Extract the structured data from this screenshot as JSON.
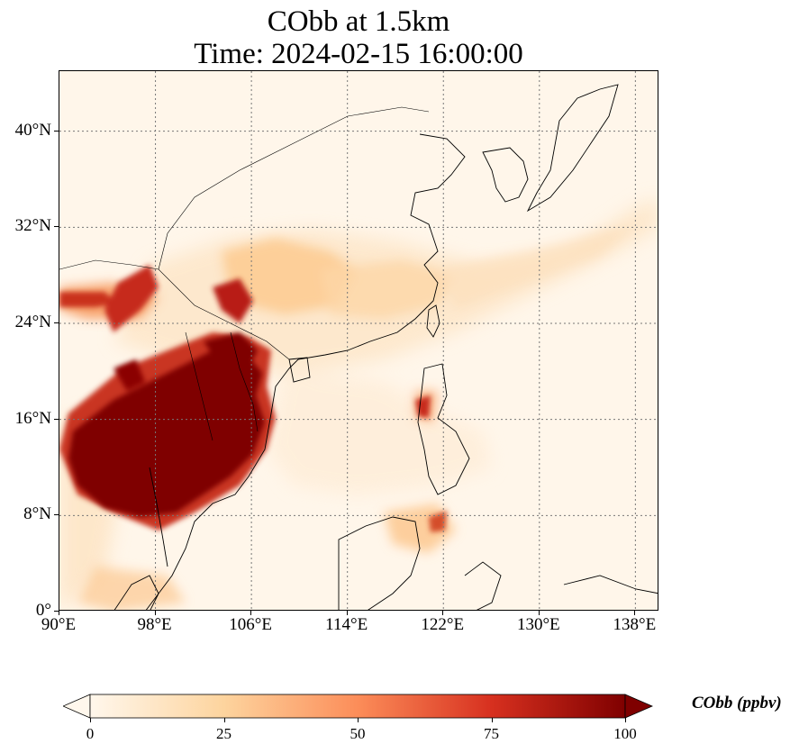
{
  "title": {
    "line1": "CObb at 1.5km",
    "line2": "Time: 2024-02-15 16:00:00"
  },
  "map": {
    "extent": {
      "lon_min": 90,
      "lon_max": 140,
      "lat_min": 0,
      "lat_max": 45
    },
    "lat_ticks": [
      {
        "value": 40,
        "label": "40°N"
      },
      {
        "value": 32,
        "label": "32°N"
      },
      {
        "value": 24,
        "label": "24°N"
      },
      {
        "value": 16,
        "label": "16°N"
      },
      {
        "value": 8,
        "label": "8°N"
      },
      {
        "value": 0,
        "label": "0°"
      }
    ],
    "lon_ticks": [
      {
        "value": 90,
        "label": "90°E"
      },
      {
        "value": 98,
        "label": "98°E"
      },
      {
        "value": 106,
        "label": "106°E"
      },
      {
        "value": 114,
        "label": "114°E"
      },
      {
        "value": 122,
        "label": "122°E"
      },
      {
        "value": 130,
        "label": "130°E"
      },
      {
        "value": 138,
        "label": "138°E"
      }
    ],
    "gridlines": "dotted",
    "colormap": "OrRd"
  },
  "colorbar": {
    "label": "CObb (ppbv)",
    "min": 0,
    "max": 100,
    "extend": "both",
    "ticks": [
      {
        "value": 0,
        "label": "0"
      },
      {
        "value": 25,
        "label": "25"
      },
      {
        "value": 50,
        "label": "50"
      },
      {
        "value": 75,
        "label": "75"
      },
      {
        "value": 100,
        "label": "100"
      }
    ],
    "colors": [
      "#fff7ec",
      "#fdd49e",
      "#fc8d59",
      "#d7301f",
      "#7f0000"
    ]
  }
}
